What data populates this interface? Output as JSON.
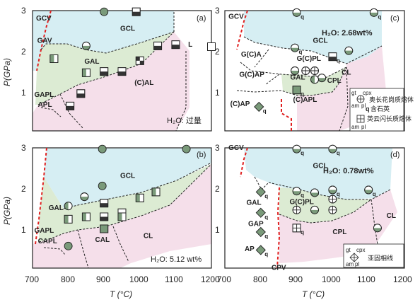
{
  "chart_data": {
    "type": "phase-diagram",
    "common": {
      "x_axis": {
        "unit_label": "T (°C)",
        "range": [
          700,
          1200
        ],
        "ticks": [
          700,
          800,
          900,
          1000,
          1100,
          1200
        ]
      },
      "y_axis": {
        "label": "P(GPa)",
        "range": [
          0,
          3
        ],
        "ticks": [
          1,
          2,
          3
        ]
      },
      "region_colors": {
        "upper": "#d6eef3",
        "middle": "#dcebd3",
        "lower": "#f5dfea"
      },
      "boundary_colors": {
        "solidus_red_dashed": "#e02020",
        "phase_black_dashed": "#222222"
      },
      "symbol_fill": "#7a9a7a"
    },
    "panels": [
      {
        "id": "a",
        "panel_label": "(a)",
        "water_label": "H₂O: 过量",
        "regions": [
          {
            "label": "GCV",
            "x": 710,
            "y": 2.75
          },
          {
            "label": "GCL",
            "x": 945,
            "y": 2.5
          },
          {
            "label": "GAV",
            "x": 713,
            "y": 2.2
          },
          {
            "label": "GAL",
            "x": 845,
            "y": 1.68
          },
          {
            "label": "L",
            "x": 1135,
            "y": 2.1
          },
          {
            "label": "(C)AL",
            "x": 985,
            "y": 1.15
          },
          {
            "label": "GAPL",
            "x": 705,
            "y": 0.85
          },
          {
            "label": "APL",
            "x": 715,
            "y": 0.6
          }
        ],
        "points": [
          {
            "shape": "circle",
            "x": 900,
            "y": 2.97,
            "fill": "green"
          },
          {
            "shape": "square",
            "x": 990,
            "y": 2.97,
            "fill": "half-h"
          },
          {
            "shape": "circle",
            "x": 850,
            "y": 2.12,
            "fill": "half-h"
          },
          {
            "shape": "square",
            "x": 760,
            "y": 1.8,
            "fill": "vbar"
          },
          {
            "shape": "square",
            "x": 850,
            "y": 1.45,
            "fill": "vbar"
          },
          {
            "shape": "square",
            "x": 900,
            "y": 1.48,
            "fill": "half-h"
          },
          {
            "shape": "square",
            "x": 950,
            "y": 1.48,
            "fill": "half-h"
          },
          {
            "shape": "square",
            "x": 1000,
            "y": 1.75,
            "fill": "quad"
          },
          {
            "shape": "square",
            "x": 1050,
            "y": 2.12,
            "fill": "half-h"
          },
          {
            "shape": "square",
            "x": 1100,
            "y": 2.15,
            "fill": "half-h"
          },
          {
            "shape": "square",
            "x": 1200,
            "y": 2.1,
            "fill": "empty"
          },
          {
            "shape": "square",
            "x": 835,
            "y": 0.93,
            "fill": "half-h"
          },
          {
            "shape": "square",
            "x": 805,
            "y": 0.62,
            "fill": "half-h"
          }
        ]
      },
      {
        "id": "c",
        "panel_label": "(c)",
        "water_label": "H₂O: 2.68wt%",
        "regions": [
          {
            "label": "GCV",
            "x": 710,
            "y": 2.8
          },
          {
            "label": "GCL",
            "x": 945,
            "y": 2.2
          },
          {
            "label": "G(C)A",
            "x": 745,
            "y": 1.85
          },
          {
            "label": "G(C)PL",
            "x": 900,
            "y": 1.75
          },
          {
            "label": "CL",
            "x": 1025,
            "y": 1.4
          },
          {
            "label": "G(C)AP",
            "x": 740,
            "y": 1.35
          },
          {
            "label": "GAL",
            "x": 882,
            "y": 1.28
          },
          {
            "label": "CPL",
            "x": 985,
            "y": 1.2
          },
          {
            "label": "(C)APL",
            "x": 890,
            "y": 0.72
          },
          {
            "label": "(C)AP",
            "x": 715,
            "y": 0.62
          }
        ],
        "points": [
          {
            "shape": "circle",
            "x": 900,
            "y": 2.95,
            "fill": "half-h",
            "q": true
          },
          {
            "shape": "circle",
            "x": 1115,
            "y": 2.95,
            "fill": "half-h",
            "q": true
          },
          {
            "shape": "circle",
            "x": 895,
            "y": 2.07,
            "fill": "half-h",
            "q": true
          },
          {
            "shape": "circle",
            "x": 1045,
            "y": 2.0,
            "fill": "half-h"
          },
          {
            "shape": "square",
            "x": 1000,
            "y": 1.85,
            "fill": "half-h",
            "q": true
          },
          {
            "shape": "circle",
            "x": 895,
            "y": 1.5,
            "fill": "half-h"
          },
          {
            "shape": "circle",
            "x": 925,
            "y": 1.5,
            "fill": "cross"
          },
          {
            "shape": "circle",
            "x": 950,
            "y": 1.5,
            "fill": "cross"
          },
          {
            "shape": "circle",
            "x": 970,
            "y": 1.32,
            "fill": "half-h"
          },
          {
            "shape": "circle",
            "x": 950,
            "y": 1.28,
            "fill": "half-v"
          },
          {
            "shape": "square",
            "x": 900,
            "y": 1.02,
            "fill": "solid",
            "q": true
          },
          {
            "shape": "diamond",
            "x": 795,
            "y": 0.6,
            "fill": "solid",
            "q": true
          }
        ],
        "legend": {
          "items": [
            {
              "symbol": "circle-cross",
              "corner_labels": [
                "gt",
                "cpx",
                "am",
                "pl"
              ],
              "text": "奥长花岗质熔体"
            },
            {
              "symbol": "q",
              "text": "含石英"
            },
            {
              "symbol": "square-cross",
              "corner_labels": [
                "gt",
                "cpx",
                "am",
                "pl"
              ],
              "text": "英云闪长质熔体"
            }
          ]
        }
      },
      {
        "id": "b",
        "panel_label": "(b)",
        "water_label": "H₂O: 5.12 wt%",
        "regions": [
          {
            "label": "GCL",
            "x": 945,
            "y": 2.25
          },
          {
            "label": "GAL",
            "x": 745,
            "y": 1.45
          },
          {
            "label": "GAPL",
            "x": 705,
            "y": 0.88
          },
          {
            "label": "CAPL",
            "x": 715,
            "y": 0.62
          },
          {
            "label": "CAL",
            "x": 875,
            "y": 0.65
          },
          {
            "label": "CL",
            "x": 1010,
            "y": 0.75
          }
        ],
        "points": [
          {
            "shape": "circle",
            "x": 895,
            "y": 2.97,
            "fill": "green"
          },
          {
            "shape": "circle",
            "x": 1130,
            "y": 2.97,
            "fill": "green"
          },
          {
            "shape": "circle",
            "x": 895,
            "y": 2.05,
            "fill": "green"
          },
          {
            "shape": "circle",
            "x": 845,
            "y": 1.78,
            "fill": "half-h"
          },
          {
            "shape": "circle",
            "x": 800,
            "y": 1.55,
            "fill": "half-v"
          },
          {
            "shape": "square",
            "x": 800,
            "y": 1.22,
            "fill": "vbar"
          },
          {
            "shape": "square",
            "x": 850,
            "y": 1.28,
            "fill": "vbar"
          },
          {
            "shape": "square",
            "x": 900,
            "y": 1.28,
            "fill": "half-h"
          },
          {
            "shape": "square",
            "x": 950,
            "y": 1.38,
            "fill": "half-h"
          },
          {
            "shape": "square",
            "x": 1000,
            "y": 1.75,
            "fill": "vbar"
          },
          {
            "shape": "square",
            "x": 1045,
            "y": 1.9,
            "fill": "vbar"
          },
          {
            "shape": "square",
            "x": 900,
            "y": 1.62,
            "fill": "half-h"
          },
          {
            "shape": "square",
            "x": 950,
            "y": 1.28,
            "fill": "vbar"
          },
          {
            "shape": "square",
            "x": 900,
            "y": 0.98,
            "fill": "solid"
          },
          {
            "shape": "circle",
            "x": 800,
            "y": 0.55,
            "fill": "green"
          }
        ]
      },
      {
        "id": "d",
        "panel_label": "(d)",
        "water_label": "H₂O: 0.78wt%",
        "regions": [
          {
            "label": "GCV",
            "x": 710,
            "y": 2.95
          },
          {
            "label": "GCL",
            "x": 945,
            "y": 2.5
          },
          {
            "label": "G(C)PL",
            "x": 880,
            "y": 1.6
          },
          {
            "label": "CL",
            "x": 1150,
            "y": 1.25
          },
          {
            "label": "GAL",
            "x": 760,
            "y": 1.58
          },
          {
            "label": "GAP",
            "x": 765,
            "y": 1.05
          },
          {
            "label": "CPL",
            "x": 1000,
            "y": 0.85
          },
          {
            "label": "AP",
            "x": 755,
            "y": 0.42
          },
          {
            "label": "CPV",
            "x": 830,
            "y": -0.04
          }
        ],
        "points": [
          {
            "shape": "circle",
            "x": 900,
            "y": 2.97,
            "fill": "half-h",
            "q": true
          },
          {
            "shape": "circle",
            "x": 1000,
            "y": 2.97,
            "fill": "half-h",
            "q": true
          },
          {
            "shape": "diamond",
            "x": 800,
            "y": 1.9,
            "fill": "solid",
            "q": true
          },
          {
            "shape": "diamond",
            "x": 800,
            "y": 1.38,
            "fill": "solid",
            "q": true
          },
          {
            "shape": "diamond",
            "x": 800,
            "y": 0.9,
            "fill": "solid",
            "q": true
          },
          {
            "shape": "diamond",
            "x": 800,
            "y": 0.45,
            "fill": "solid",
            "q": true
          },
          {
            "shape": "circle",
            "x": 900,
            "y": 1.92,
            "fill": "half-h",
            "q": true
          },
          {
            "shape": "circle",
            "x": 950,
            "y": 1.88,
            "fill": "half-h"
          },
          {
            "shape": "circle",
            "x": 1000,
            "y": 1.95,
            "fill": "half-h",
            "q": true
          },
          {
            "shape": "circle",
            "x": 1100,
            "y": 1.95,
            "fill": "half-h",
            "q": true
          },
          {
            "shape": "circle",
            "x": 900,
            "y": 1.45,
            "fill": "cross"
          },
          {
            "shape": "circle",
            "x": 950,
            "y": 1.45,
            "fill": "half-h"
          },
          {
            "shape": "circle",
            "x": 1000,
            "y": 1.45,
            "fill": "cross"
          },
          {
            "shape": "circle",
            "x": 1000,
            "y": 1.72,
            "fill": "cross"
          },
          {
            "shape": "square",
            "x": 900,
            "y": 1.0,
            "fill": "cross",
            "q": true
          },
          {
            "shape": "circle",
            "x": 1125,
            "y": 1.0,
            "fill": "half-h"
          }
        ],
        "legend": {
          "items": [
            {
              "symbol": "diamond-cross",
              "corner_labels": [
                "gt",
                "cpx",
                "am",
                "pl"
              ],
              "text": "亚固相线"
            }
          ]
        }
      }
    ]
  }
}
